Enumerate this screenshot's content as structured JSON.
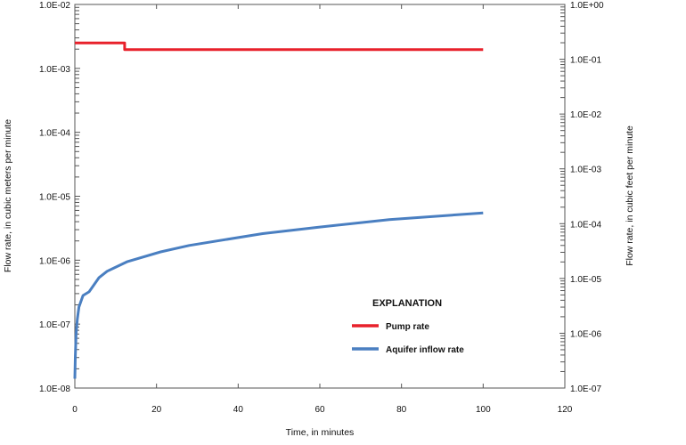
{
  "chart_data": {
    "type": "line",
    "title": "",
    "xlabel": "Time, in minutes",
    "ylabel": "Flow rate, in cubic meters per minute",
    "ylabel_right": "Flow rate, in cubic feet per minute",
    "xlim": [
      0,
      120
    ],
    "ylim": [
      1e-08,
      0.01
    ],
    "ylim_right": [
      1e-07,
      1
    ],
    "yscale": "log",
    "grid": false,
    "x_ticks": [
      "0",
      "20",
      "40",
      "60",
      "80",
      "100",
      "120"
    ],
    "y_ticks": [
      "1.0E-08",
      "1.0E-07",
      "1.0E-06",
      "1.0E-05",
      "1.0E-04",
      "1.0E-03",
      "1.0E-02"
    ],
    "y_ticks_right": [
      "1.0E-07",
      "1.0E-06",
      "1.0E-05",
      "1.0E-04",
      "1.0E-03",
      "1.0E-02",
      "1.0E-01",
      "1.0E+00"
    ],
    "legend": {
      "title": "EXPLANATION",
      "placement": "center-right"
    },
    "series": [
      {
        "name": "Pump rate",
        "color": "#e8212b",
        "x": [
          0,
          12.2,
          12.2,
          100
        ],
        "y": [
          0.0025,
          0.0025,
          0.00197,
          0.00197
        ]
      },
      {
        "name": "Aquifer inflow rate",
        "color": "#4a7fc1",
        "x": [
          0,
          0.1,
          0.3,
          0.6,
          1,
          2,
          3.5,
          5.9,
          7.9,
          12.9,
          21,
          28,
          46,
          60,
          77,
          100
        ],
        "y": [
          1.4e-08,
          3e-08,
          7e-08,
          1.2e-07,
          1.85e-07,
          2.8e-07,
          3.2e-07,
          5.3e-07,
          6.7e-07,
          9.5e-07,
          1.35e-06,
          1.7e-06,
          2.6e-06,
          3.3e-06,
          4.3e-06,
          5.5e-06
        ]
      }
    ]
  }
}
